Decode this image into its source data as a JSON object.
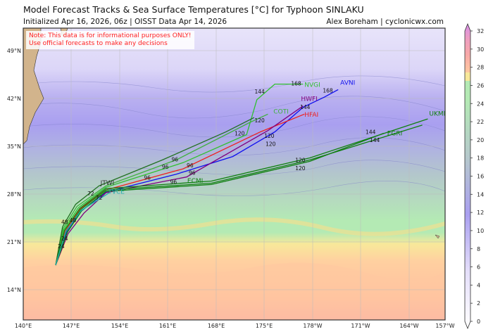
{
  "header": {
    "title": "Model Forecast Tracks & Sea Surface Temperatures [°C] for Typhoon SINLAKU",
    "subtitle": "Initialized Apr 16, 2026, 06z | OISST Data Apr 14, 2026",
    "credit": "Alex Boreham | cyclonicwx.com"
  },
  "note": {
    "line1": "Note: This data is for informational purposes ONLY!",
    "line2": "Use official forecasts to make any decisions"
  },
  "map": {
    "lon_ticks": [
      "140°E",
      "147°E",
      "154°E",
      "161°E",
      "168°E",
      "175°E",
      "178°W",
      "171°W",
      "164°W",
      "157°W"
    ],
    "lat_ticks": [
      "49°N",
      "42°N",
      "35°N",
      "28°N",
      "21°N",
      "14°N"
    ],
    "extent": {
      "lon_min_east": 140,
      "lon_max_east": 203,
      "lat_min": 9.6,
      "lat_max": 52.3
    }
  },
  "colorbar": {
    "ticks": [
      "0",
      "2",
      "4",
      "6",
      "8",
      "10",
      "12",
      "14",
      "16",
      "18",
      "20",
      "22",
      "24",
      "26",
      "28",
      "30",
      "32"
    ],
    "range": [
      0,
      32
    ],
    "unit": "°C",
    "colors": {
      "0": "#ffffff",
      "6": "#e4defa",
      "12": "#a99ff0",
      "18": "#b5c8cc",
      "24": "#b4eab4",
      "26": "#f8e89a",
      "28": "#ffc8a0",
      "30": "#f4a0a8",
      "32": "#d68ee8"
    }
  },
  "tracks": [
    {
      "name": "AVNI",
      "color": "#1010ee",
      "points": [
        [
          144.7,
          17.6
        ],
        [
          146.3,
          22.4
        ],
        [
          148.4,
          25.5
        ],
        [
          152.0,
          28.3
        ],
        [
          162.2,
          30.9
        ],
        [
          170.4,
          33.5
        ],
        [
          176.5,
          37.1
        ],
        [
          180.6,
          40.7
        ],
        [
          183.7,
          42.2
        ],
        [
          185.7,
          43.3
        ]
      ]
    },
    {
      "name": "HFAI",
      "color": "#ee2020",
      "points": [
        [
          144.7,
          17.6
        ],
        [
          146.1,
          22.6
        ],
        [
          148.2,
          25.8
        ],
        [
          152.0,
          28.6
        ],
        [
          163.2,
          31.7
        ],
        [
          174.4,
          37.1
        ],
        [
          180.8,
          39.7
        ]
      ]
    },
    {
      "name": "HWFI",
      "color": "#800080",
      "points": [
        [
          144.7,
          17.6
        ],
        [
          146.5,
          22.2
        ],
        [
          148.8,
          25.2
        ],
        [
          152.0,
          28.2
        ],
        [
          163.7,
          30.5
        ],
        [
          175.5,
          37.3
        ],
        [
          180.6,
          40.9
        ]
      ]
    },
    {
      "name": "NVGI",
      "color": "#30c030",
      "points": [
        [
          144.7,
          17.6
        ],
        [
          145.9,
          22.8
        ],
        [
          148.0,
          26.0
        ],
        [
          152.0,
          29.0
        ],
        [
          163.2,
          32.6
        ],
        [
          172.4,
          36.7
        ],
        [
          173.9,
          41.8
        ],
        [
          176.5,
          44.1
        ],
        [
          180.6,
          44.1
        ]
      ]
    },
    {
      "name": "COTI",
      "color": "#40b040",
      "points": [
        [
          144.7,
          17.6
        ],
        [
          145.8,
          23.0
        ],
        [
          147.8,
          26.2
        ],
        [
          152.0,
          29.2
        ],
        [
          162.2,
          33.0
        ],
        [
          172.9,
          38.5
        ],
        [
          175.5,
          39.7
        ]
      ]
    },
    {
      "name": "ECMI",
      "color": "#108010",
      "points": [
        [
          144.7,
          17.6
        ],
        [
          146.2,
          22.5
        ],
        [
          148.3,
          25.7
        ],
        [
          152.0,
          28.6
        ],
        [
          167.3,
          29.6
        ],
        [
          181.6,
          33.0
        ],
        [
          197.9,
          38.1
        ]
      ]
    },
    {
      "name": "UKMI",
      "color": "#108010",
      "points": [
        [
          144.7,
          17.6
        ],
        [
          146.0,
          22.7
        ],
        [
          148.2,
          25.9
        ],
        [
          152.0,
          28.8
        ],
        [
          167.3,
          29.9
        ],
        [
          181.6,
          33.3
        ],
        [
          198.7,
          39.0
        ]
      ]
    },
    {
      "name": "EGRI",
      "color": "#108010",
      "points": [
        [
          144.7,
          17.6
        ],
        [
          146.4,
          22.4
        ],
        [
          148.5,
          25.6
        ],
        [
          152.0,
          28.4
        ],
        [
          167.3,
          29.4
        ],
        [
          181.6,
          32.8
        ],
        [
          192.3,
          36.9
        ]
      ]
    },
    {
      "name": "JTWI",
      "color": "#207020",
      "points": [
        [
          144.7,
          17.6
        ],
        [
          145.7,
          23.2
        ],
        [
          147.6,
          26.5
        ],
        [
          151.0,
          29.2
        ],
        [
          160.2,
          33.0
        ],
        [
          169.4,
          37.1
        ],
        [
          173.5,
          39.2
        ]
      ]
    },
    {
      "name": "TVCE",
      "color": "#20b0b0",
      "points": [
        [
          144.7,
          17.6
        ],
        [
          146.2,
          22.6
        ],
        [
          148.4,
          25.6
        ],
        [
          152.5,
          28.2
        ]
      ]
    }
  ],
  "track_labels": [
    {
      "text": "AVNI",
      "lon": 186.0,
      "lat": 44.0,
      "color": "#1010ee"
    },
    {
      "text": "HWFI",
      "lon": 180.3,
      "lat": 41.3,
      "color": "#800080"
    },
    {
      "text": "HFAI",
      "lon": 180.8,
      "lat": 39.8,
      "color": "#ee2020"
    },
    {
      "text": "NVGI",
      "lon": 180.8,
      "lat": 43.7,
      "color": "#30c030"
    },
    {
      "text": "COTI",
      "lon": 176.3,
      "lat": 39.8,
      "color": "#40b040"
    },
    {
      "text": "UKMI",
      "lon": 198.9,
      "lat": 39.5,
      "color": "#108010"
    },
    {
      "text": "EGRI",
      "lon": 192.8,
      "lat": 36.6,
      "color": "#108010"
    },
    {
      "text": "ECMI",
      "lon": 163.8,
      "lat": 30.0,
      "color": "#108010"
    },
    {
      "text": "JTWI",
      "lon": 151.2,
      "lat": 28.9,
      "color": "#333333"
    },
    {
      "text": "TVCE",
      "lon": 152.3,
      "lat": 28.5,
      "color": "#20b0b0"
    }
  ],
  "tau_labels": [
    {
      "text": "24",
      "lon": 145.5,
      "lat": 20.4
    },
    {
      "text": "24",
      "lon": 146.0,
      "lat": 20.9
    },
    {
      "text": "48",
      "lon": 146.0,
      "lat": 23.6
    },
    {
      "text": "48",
      "lon": 147.2,
      "lat": 23.9
    },
    {
      "text": "72",
      "lon": 149.8,
      "lat": 27.8
    },
    {
      "text": "72",
      "lon": 151.0,
      "lat": 27.2
    },
    {
      "text": "96",
      "lon": 160.6,
      "lat": 31.7
    },
    {
      "text": "96",
      "lon": 162.0,
      "lat": 32.8
    },
    {
      "text": "96",
      "lon": 164.2,
      "lat": 31.6
    },
    {
      "text": "96",
      "lon": 164.5,
      "lat": 30.8
    },
    {
      "text": "96",
      "lon": 158.0,
      "lat": 30.1
    },
    {
      "text": "96",
      "lon": 161.8,
      "lat": 29.5
    },
    {
      "text": "120",
      "lon": 171.4,
      "lat": 36.6
    },
    {
      "text": "120",
      "lon": 174.3,
      "lat": 38.5
    },
    {
      "text": "120",
      "lon": 175.7,
      "lat": 35.9
    },
    {
      "text": "120",
      "lon": 175.9,
      "lat": 35.4
    },
    {
      "text": "120",
      "lon": 180.2,
      "lat": 32.3
    },
    {
      "text": "120",
      "lon": 180.2,
      "lat": 31.9
    },
    {
      "text": "144",
      "lon": 174.3,
      "lat": 42.7
    },
    {
      "text": "144",
      "lon": 180.9,
      "lat": 40.3
    },
    {
      "text": "144",
      "lon": 190.4,
      "lat": 36.4
    },
    {
      "text": "144",
      "lon": 191.0,
      "lat": 36.0
    },
    {
      "text": "168",
      "lon": 179.6,
      "lat": 43.9
    },
    {
      "text": "168",
      "lon": 184.2,
      "lat": 42.9
    }
  ]
}
